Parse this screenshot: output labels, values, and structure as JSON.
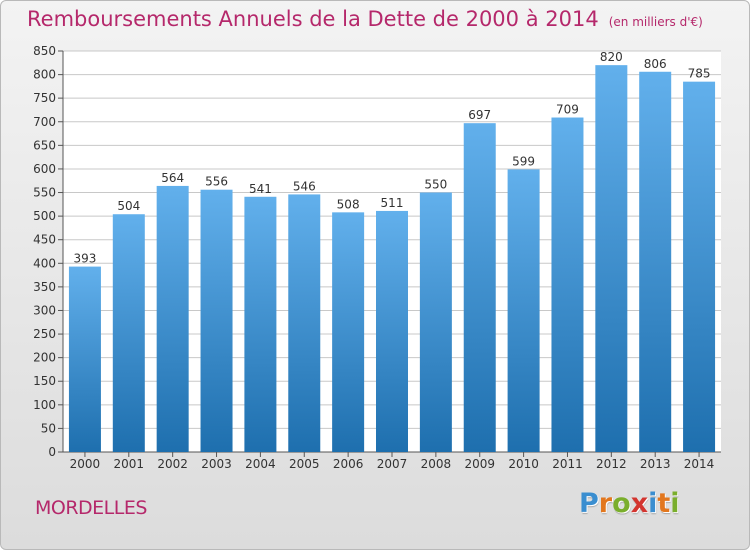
{
  "title": "Remboursements Annuels de la Dette de 2000 à 2014",
  "unit": "(en milliers d'€)",
  "commune": "MORDELLES",
  "logo": {
    "text": "Proxiti",
    "letter_colors": [
      "#3a8ed0",
      "#e2771e",
      "#7aae2c",
      "#d3352f",
      "#3a8ed0",
      "#e2771e",
      "#7aae2c"
    ]
  },
  "colors": {
    "title": "#b5286b",
    "bar_top": "#62b0ec",
    "bar_bottom": "#1e6fae",
    "grid": "#c8c8c8"
  },
  "chart_data": {
    "type": "bar",
    "title": "Remboursements Annuels de la Dette de 2000 à 2014",
    "xlabel": "",
    "ylabel": "",
    "categories": [
      "2000",
      "2001",
      "2002",
      "2003",
      "2004",
      "2005",
      "2006",
      "2007",
      "2008",
      "2009",
      "2010",
      "2011",
      "2012",
      "2013",
      "2014"
    ],
    "values": [
      393,
      504,
      564,
      556,
      541,
      546,
      508,
      511,
      550,
      697,
      599,
      709,
      820,
      806,
      785
    ],
    "ylim": [
      0,
      850
    ],
    "yticks": [
      0,
      50,
      100,
      150,
      200,
      250,
      300,
      350,
      400,
      450,
      500,
      550,
      600,
      650,
      700,
      750,
      800,
      850
    ],
    "grid": true,
    "data_labels": true
  }
}
